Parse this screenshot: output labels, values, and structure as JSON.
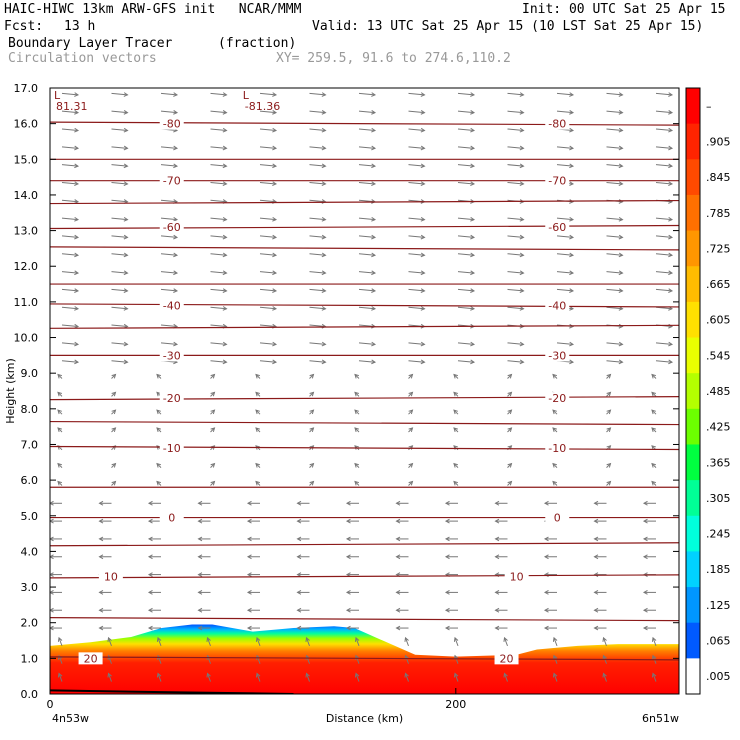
{
  "header": {
    "model_line": "HAIC-HIWC 13km ARW-GFS init   NCAR/MMM",
    "init": "Init: 00 UTC Sat 25 Apr 15",
    "fcst_label": "Fcst:",
    "fcst_value": "13 h",
    "valid": "Valid: 13 UTC Sat 25 Apr 15 (10 LST Sat 25 Apr 15)",
    "field": "Boundary Layer Tracer",
    "field_units": "(fraction)",
    "vectors": "Circulation vectors",
    "xy": "XY= 259.5, 91.6 to 274.6,110.2"
  },
  "chart_data": {
    "type": "heatmap",
    "xlabel": "Distance (km)",
    "ylabel": "Height (km)",
    "xlim": [
      0,
      310
    ],
    "ylim": [
      0,
      17
    ],
    "x_ticks": [
      {
        "v": 0,
        "label": "0"
      },
      {
        "v": 200,
        "label": "200"
      }
    ],
    "x_end_labels": {
      "left": "4n53w",
      "right": "6n51w"
    },
    "y_ticks": [
      "0.0",
      "1.0",
      "2.0",
      "3.0",
      "4.0",
      "5.0",
      "6.0",
      "7.0",
      "8.0",
      "9.0",
      "10.0",
      "11.0",
      "12.0",
      "13.0",
      "14.0",
      "15.0",
      "16.0",
      "17.0"
    ],
    "colorbar": {
      "labels": [
        "–",
        ".905",
        ".845",
        ".785",
        ".725",
        ".665",
        ".605",
        ".545",
        ".485",
        ".425",
        ".365",
        ".305",
        ".245",
        ".185",
        ".125",
        ".065",
        ".005"
      ],
      "colors": [
        "#ff0000",
        "#ff2400",
        "#ff4a00",
        "#ff7000",
        "#ff9600",
        "#ffbc00",
        "#ffe000",
        "#eaff00",
        "#b4ff00",
        "#6cff00",
        "#00ff40",
        "#00ff96",
        "#00ffdc",
        "#00d2ff",
        "#0096ff",
        "#005aff",
        "#ffffff"
      ]
    },
    "boundary_layer_top_km": {
      "x": [
        0,
        20,
        40,
        55,
        70,
        80,
        100,
        120,
        140,
        150,
        160,
        180,
        200,
        230,
        240,
        260,
        280,
        310
      ],
      "y": [
        1.35,
        1.45,
        1.6,
        1.85,
        1.95,
        1.95,
        1.75,
        1.85,
        1.9,
        1.85,
        1.6,
        1.1,
        1.05,
        1.1,
        1.25,
        1.35,
        1.4,
        1.4
      ]
    },
    "temperature_contours": [
      {
        "label": "-80",
        "height": 16.0,
        "label_x": [
          60,
          250
        ]
      },
      {
        "label": "-70",
        "height": 14.4,
        "label_x": [
          60,
          250
        ]
      },
      {
        "label": "-60",
        "height": 13.1,
        "label_x": [
          60,
          250
        ]
      },
      {
        "label": "-40",
        "height": 10.9,
        "label_x": [
          60,
          250
        ]
      },
      {
        "label": "-30",
        "height": 9.5,
        "label_x": [
          60,
          250
        ]
      },
      {
        "label": "-20",
        "height": 8.3,
        "label_x": [
          60,
          250
        ]
      },
      {
        "label": "-10",
        "height": 6.9,
        "label_x": [
          60,
          250
        ]
      },
      {
        "label": "0",
        "height": 4.95,
        "label_x": [
          60,
          250
        ]
      },
      {
        "label": "10",
        "height": 3.3,
        "label_x": [
          30,
          230
        ]
      },
      {
        "label": "20",
        "height": 1.0,
        "label_x": [
          20,
          225
        ]
      }
    ],
    "other_contour_heights": [
      15.0,
      13.8,
      12.5,
      11.5,
      10.3,
      7.6,
      5.8,
      4.2,
      2.1
    ],
    "low_labels": [
      {
        "x": 2,
        "label": "L",
        "value": "81.31"
      },
      {
        "x": 95,
        "label": "L",
        "value": "-81.36"
      }
    ]
  }
}
